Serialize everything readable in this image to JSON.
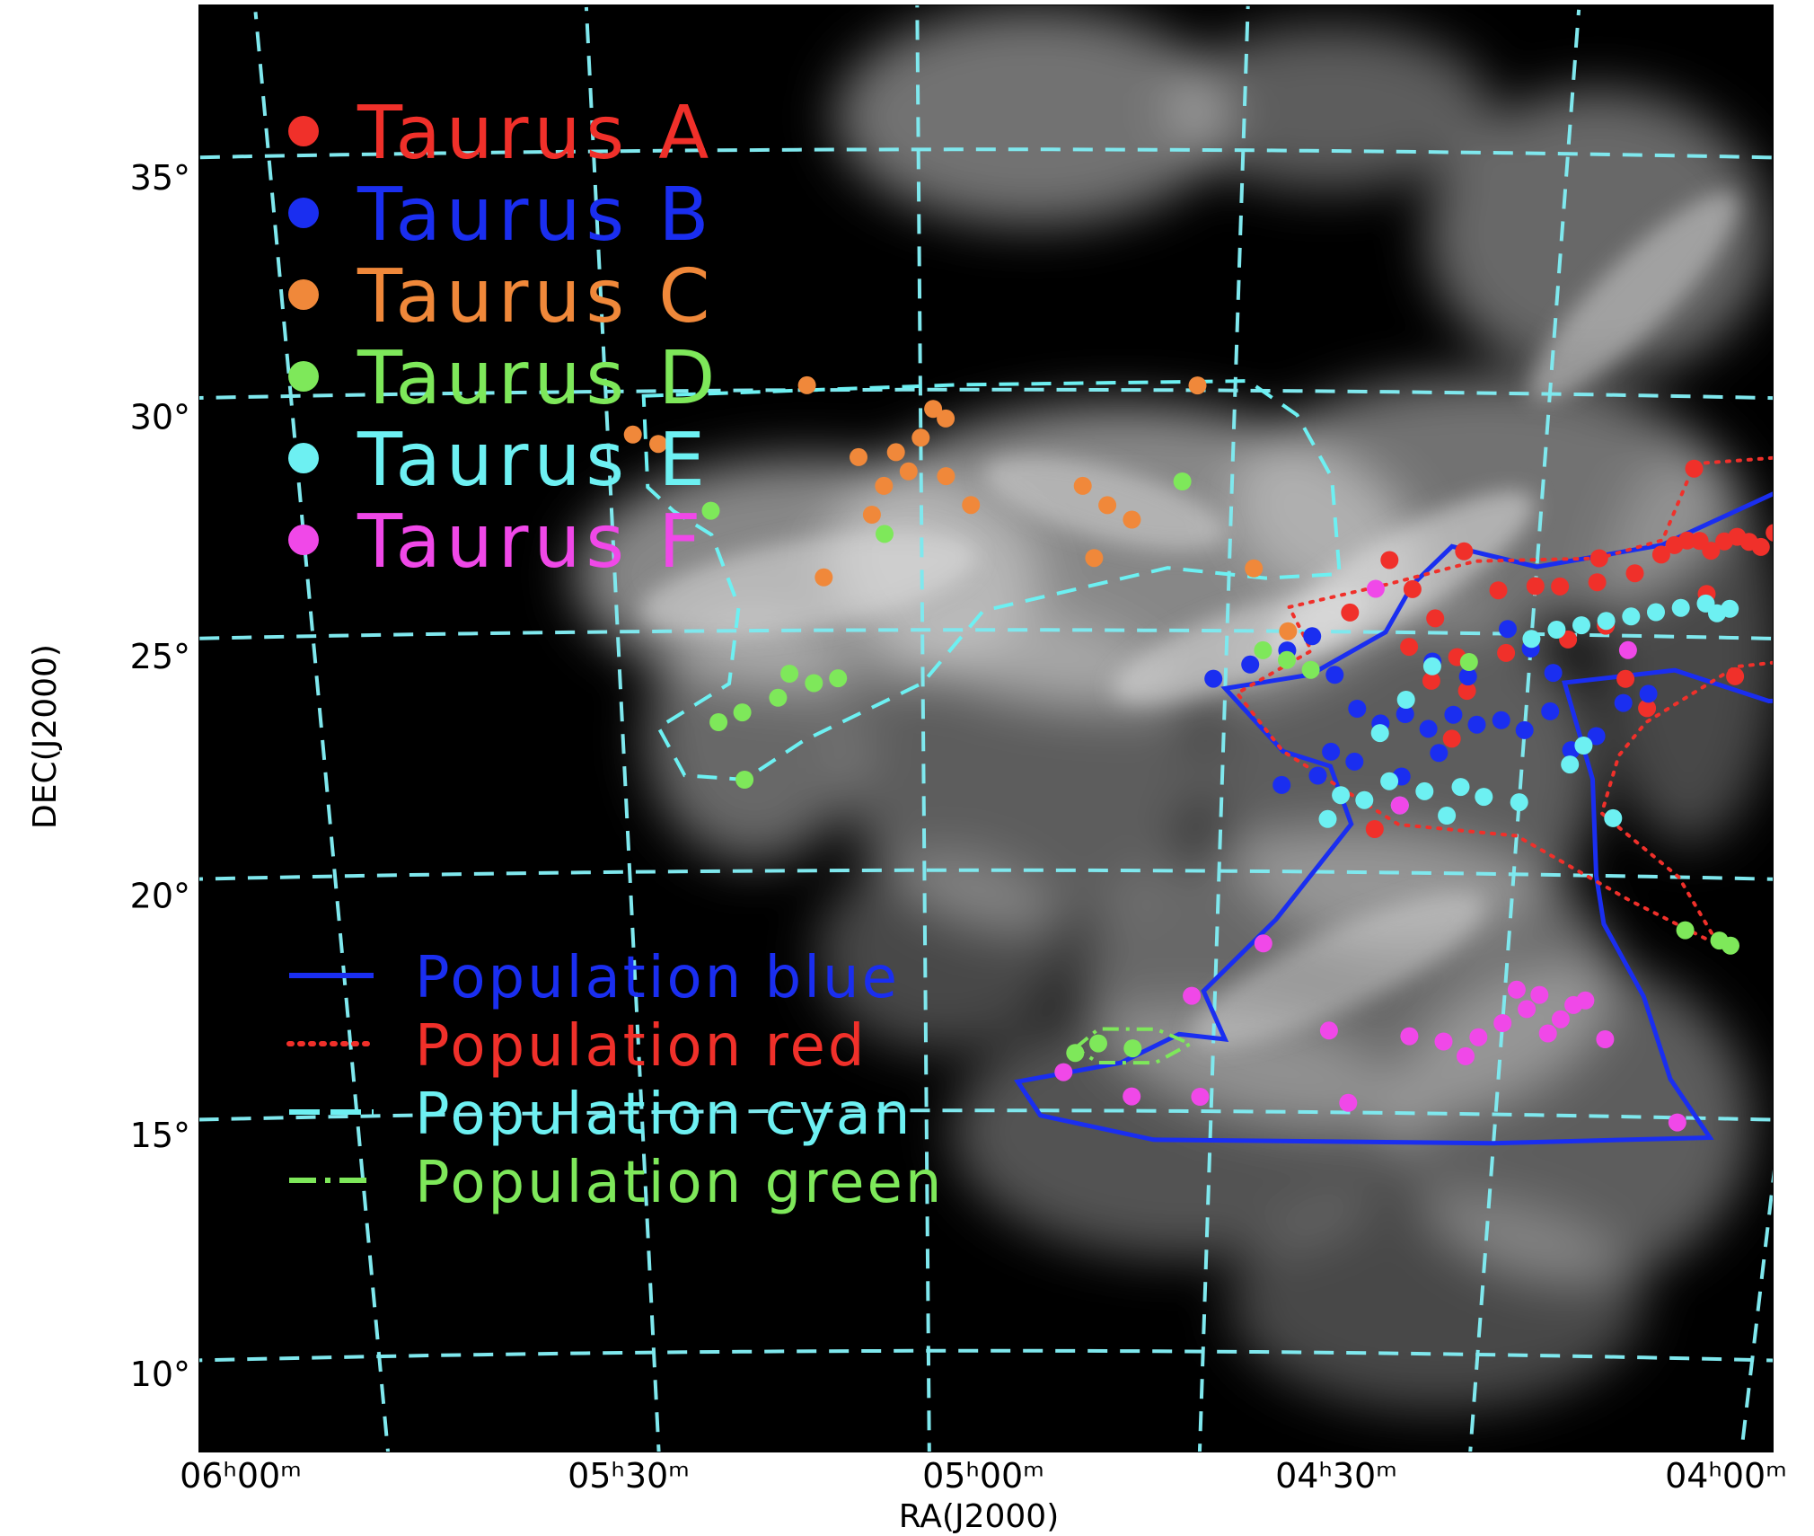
{
  "chart_data": {
    "type": "scatter",
    "title": "",
    "xlabel": "RA(J2000)",
    "ylabel": "DEC(J2000)",
    "xlim": [
      6.0,
      4.0
    ],
    "ylim": [
      8.5,
      36.5
    ],
    "colors": {
      "frame": "#000000",
      "grid": "#7fe8ee",
      "cloud": "#d8d8d8"
    },
    "ra_ticks": [
      {
        "value": 6.0,
        "label": "06ʰ00ᵐ"
      },
      {
        "value": 5.5,
        "label": "05ʰ30ᵐ"
      },
      {
        "value": 5.0,
        "label": "05ʰ00ᵐ"
      },
      {
        "value": 4.5,
        "label": "04ʰ30ᵐ"
      },
      {
        "value": 4.0,
        "label": "04ʰ00ᵐ"
      }
    ],
    "dec_ticks": [
      {
        "value": 35,
        "label": "35°"
      },
      {
        "value": 30,
        "label": "30°"
      },
      {
        "value": 25,
        "label": "25°"
      },
      {
        "value": 20,
        "label": "20°"
      },
      {
        "value": 15,
        "label": "15°"
      },
      {
        "value": 10,
        "label": "10°"
      }
    ],
    "series": [
      {
        "name": "Taurus A",
        "color": "#f0302a",
        "points": [
          [
            4.53,
            25.9
          ],
          [
            4.5,
            26.0
          ],
          [
            4.48,
            26.0
          ],
          [
            4.45,
            26.1
          ],
          [
            4.42,
            26.3
          ],
          [
            4.4,
            26.7
          ],
          [
            4.39,
            26.9
          ],
          [
            4.38,
            27.0
          ],
          [
            4.37,
            27.0
          ],
          [
            4.36,
            26.8
          ],
          [
            4.35,
            27.0
          ],
          [
            4.34,
            27.1
          ],
          [
            4.33,
            27.0
          ],
          [
            4.32,
            26.9
          ],
          [
            4.31,
            27.2
          ],
          [
            4.3,
            27.0
          ],
          [
            4.29,
            27.2
          ],
          [
            4.28,
            27.3
          ],
          [
            4.27,
            27.1
          ],
          [
            4.26,
            27.0
          ],
          [
            4.25,
            27.1
          ],
          [
            4.24,
            26.9
          ],
          [
            4.23,
            27.0
          ],
          [
            4.22,
            26.7
          ],
          [
            4.21,
            26.9
          ],
          [
            4.38,
            28.5
          ],
          [
            4.56,
            26.7
          ],
          [
            4.62,
            26.5
          ],
          [
            4.6,
            25.9
          ],
          [
            4.65,
            25.4
          ],
          [
            4.58,
            25.3
          ],
          [
            4.6,
            24.7
          ],
          [
            4.56,
            24.5
          ],
          [
            4.52,
            24.6
          ],
          [
            4.44,
            25.2
          ],
          [
            4.42,
            24.1
          ],
          [
            4.58,
            24.0
          ],
          [
            4.55,
            23.8
          ],
          [
            4.4,
            23.5
          ],
          [
            4.33,
            24.2
          ],
          [
            4.29,
            26.0
          ],
          [
            4.45,
            26.6
          ],
          [
            4.36,
            25.9
          ],
          [
            4.62,
            20.9
          ],
          [
            4.56,
            22.8
          ],
          [
            4.15,
            26.5
          ],
          [
            4.47,
            24.9
          ]
        ]
      },
      {
        "name": "Taurus B",
        "color": "#1a2ef0",
        "points": [
          [
            4.76,
            24.0
          ],
          [
            4.73,
            24.3
          ],
          [
            4.7,
            24.6
          ],
          [
            4.68,
            24.9
          ],
          [
            4.66,
            24.1
          ],
          [
            4.64,
            23.4
          ],
          [
            4.62,
            23.1
          ],
          [
            4.6,
            23.3
          ],
          [
            4.58,
            23.0
          ],
          [
            4.56,
            23.3
          ],
          [
            4.54,
            23.1
          ],
          [
            4.52,
            23.2
          ],
          [
            4.5,
            23.0
          ],
          [
            4.48,
            23.4
          ],
          [
            4.46,
            22.6
          ],
          [
            4.44,
            22.9
          ],
          [
            4.42,
            23.6
          ],
          [
            4.4,
            23.8
          ],
          [
            4.66,
            22.5
          ],
          [
            4.67,
            22.0
          ],
          [
            4.64,
            22.3
          ],
          [
            4.6,
            22.0
          ],
          [
            4.58,
            24.4
          ],
          [
            4.55,
            24.1
          ],
          [
            4.52,
            25.1
          ],
          [
            4.5,
            24.7
          ],
          [
            4.48,
            24.2
          ],
          [
            4.2,
            27.0
          ],
          [
            4.19,
            25.7
          ],
          [
            4.57,
            22.5
          ],
          [
            4.7,
            21.8
          ]
        ]
      },
      {
        "name": "Taurus C",
        "color": "#f0883a",
        "points": [
          [
            5.23,
            29.1
          ],
          [
            5.21,
            28.9
          ],
          [
            5.09,
            30.1
          ],
          [
            4.99,
            29.6
          ],
          [
            4.98,
            29.4
          ],
          [
            5.0,
            29.0
          ],
          [
            5.02,
            28.7
          ],
          [
            5.01,
            28.3
          ],
          [
            5.03,
            28.0
          ],
          [
            4.98,
            28.2
          ],
          [
            4.96,
            27.6
          ],
          [
            5.04,
            27.4
          ],
          [
            5.05,
            28.6
          ],
          [
            4.87,
            28.0
          ],
          [
            4.85,
            27.6
          ],
          [
            4.83,
            27.3
          ],
          [
            4.86,
            26.5
          ],
          [
            4.78,
            30.1
          ],
          [
            4.73,
            26.3
          ],
          [
            4.7,
            25.0
          ],
          [
            5.08,
            26.1
          ]
        ]
      },
      {
        "name": "Taurus D",
        "color": "#7ee85a",
        "points": [
          [
            5.17,
            27.5
          ],
          [
            5.03,
            27.0
          ],
          [
            4.79,
            28.1
          ],
          [
            5.11,
            24.1
          ],
          [
            5.09,
            23.9
          ],
          [
            5.07,
            24.0
          ],
          [
            5.12,
            23.6
          ],
          [
            5.15,
            23.3
          ],
          [
            5.17,
            23.1
          ],
          [
            5.15,
            21.9
          ],
          [
            4.72,
            24.6
          ],
          [
            4.7,
            24.4
          ],
          [
            4.68,
            24.2
          ],
          [
            4.55,
            24.4
          ],
          [
            4.35,
            18.9
          ],
          [
            4.32,
            18.7
          ],
          [
            4.31,
            18.6
          ],
          [
            4.87,
            16.2
          ],
          [
            4.85,
            16.4
          ],
          [
            4.82,
            16.3
          ]
        ]
      },
      {
        "name": "Taurus E",
        "color": "#6df0f2",
        "points": [
          [
            4.5,
            24.9
          ],
          [
            4.48,
            25.1
          ],
          [
            4.46,
            25.2
          ],
          [
            4.44,
            25.3
          ],
          [
            4.42,
            25.4
          ],
          [
            4.4,
            25.5
          ],
          [
            4.38,
            25.6
          ],
          [
            4.36,
            25.7
          ],
          [
            4.35,
            25.5
          ],
          [
            4.34,
            25.6
          ],
          [
            4.58,
            24.3
          ],
          [
            4.6,
            23.6
          ],
          [
            4.62,
            22.9
          ],
          [
            4.61,
            21.9
          ],
          [
            4.63,
            21.5
          ],
          [
            4.65,
            21.6
          ],
          [
            4.6,
            21.4
          ],
          [
            4.58,
            21.7
          ],
          [
            4.56,
            21.2
          ],
          [
            4.55,
            21.8
          ],
          [
            4.53,
            21.6
          ],
          [
            4.5,
            21.5
          ],
          [
            4.45,
            22.7
          ],
          [
            4.42,
            21.2
          ],
          [
            4.66,
            21.1
          ],
          [
            4.3,
            27.7
          ],
          [
            4.15,
            27.6
          ],
          [
            4.46,
            22.3
          ]
        ]
      },
      {
        "name": "Taurus F",
        "color": "#f048e8",
        "points": [
          [
            4.63,
            25.9
          ],
          [
            4.42,
            24.7
          ],
          [
            4.17,
            24.6
          ],
          [
            4.14,
            25.3
          ],
          [
            4.22,
            23.5
          ],
          [
            4.6,
            21.4
          ],
          [
            4.71,
            18.5
          ],
          [
            4.77,
            17.4
          ],
          [
            4.65,
            16.7
          ],
          [
            4.58,
            16.6
          ],
          [
            4.55,
            16.5
          ],
          [
            4.52,
            16.6
          ],
          [
            4.5,
            16.9
          ],
          [
            4.48,
            17.2
          ],
          [
            4.47,
            17.5
          ],
          [
            4.45,
            17.0
          ],
          [
            4.44,
            17.3
          ],
          [
            4.46,
            16.7
          ],
          [
            4.49,
            17.6
          ],
          [
            4.43,
            17.4
          ],
          [
            4.41,
            16.6
          ],
          [
            4.88,
            15.8
          ],
          [
            4.82,
            15.3
          ],
          [
            4.76,
            15.3
          ],
          [
            4.63,
            15.2
          ],
          [
            4.34,
            14.9
          ],
          [
            4.53,
            16.2
          ]
        ]
      }
    ],
    "legend_markers": [
      {
        "label": "Taurus A",
        "color": "#f0302a"
      },
      {
        "label": "Taurus B",
        "color": "#1a2ef0"
      },
      {
        "label": "Taurus C",
        "color": "#f0883a"
      },
      {
        "label": "Taurus D",
        "color": "#7ee85a"
      },
      {
        "label": "Taurus E",
        "color": "#6df0f2"
      },
      {
        "label": "Taurus F",
        "color": "#f048e8"
      }
    ],
    "legend_lines": [
      {
        "label": "Population blue",
        "color": "#1a2ef0",
        "style": "solid"
      },
      {
        "label": "Population red",
        "color": "#f0302a",
        "style": "dotted"
      },
      {
        "label": "Population cyan",
        "color": "#6df0f2",
        "style": "dashed"
      },
      {
        "label": "Population green",
        "color": "#7ee85a",
        "style": "dashdot"
      }
    ],
    "regions": [
      {
        "name": "Population blue",
        "color": "#1a2ef0",
        "style": "solid",
        "vertices": [
          [
            4.57,
            26.8
          ],
          [
            4.5,
            26.4
          ],
          [
            4.4,
            26.9
          ],
          [
            4.3,
            28.2
          ],
          [
            4.15,
            28.5
          ],
          [
            4.2,
            27.3
          ],
          [
            4.16,
            26.3
          ],
          [
            4.12,
            26.0
          ],
          [
            4.15,
            25.0
          ],
          [
            4.2,
            23.8
          ],
          [
            4.3,
            23.7
          ],
          [
            4.38,
            24.3
          ],
          [
            4.47,
            24.0
          ],
          [
            4.44,
            22.0
          ],
          [
            4.43,
            20.0
          ],
          [
            4.42,
            19.0
          ],
          [
            4.38,
            17.5
          ],
          [
            4.35,
            15.8
          ],
          [
            4.31,
            14.6
          ],
          [
            4.5,
            14.4
          ],
          [
            4.8,
            14.4
          ],
          [
            4.9,
            14.9
          ],
          [
            4.92,
            15.6
          ],
          [
            4.83,
            16.0
          ],
          [
            4.78,
            16.6
          ],
          [
            4.74,
            16.5
          ],
          [
            4.76,
            17.5
          ],
          [
            4.7,
            19.0
          ],
          [
            4.64,
            21.0
          ],
          [
            4.66,
            22.2
          ],
          [
            4.7,
            22.5
          ],
          [
            4.75,
            23.8
          ],
          [
            4.68,
            24.1
          ],
          [
            4.62,
            25.0
          ],
          [
            4.6,
            26.0
          ]
        ]
      },
      {
        "name": "Population red",
        "color": "#f0302a",
        "style": "dotted",
        "vertices": [
          [
            4.38,
            28.6
          ],
          [
            4.3,
            28.8
          ],
          [
            4.23,
            27.6
          ],
          [
            4.18,
            26.7
          ],
          [
            4.14,
            26.8
          ],
          [
            4.2,
            25.5
          ],
          [
            4.27,
            24.6
          ],
          [
            4.33,
            24.4
          ],
          [
            4.4,
            23.2
          ],
          [
            4.42,
            22.5
          ],
          [
            4.43,
            21.3
          ],
          [
            4.36,
            20.0
          ],
          [
            4.32,
            18.6
          ],
          [
            4.4,
            19.5
          ],
          [
            4.5,
            20.8
          ],
          [
            4.6,
            21.0
          ],
          [
            4.7,
            22.5
          ],
          [
            4.74,
            23.7
          ],
          [
            4.68,
            24.6
          ],
          [
            4.7,
            25.5
          ],
          [
            4.62,
            26.0
          ],
          [
            4.55,
            26.5
          ],
          [
            4.45,
            26.6
          ],
          [
            4.4,
            27.0
          ]
        ]
      },
      {
        "name": "Population cyan",
        "color": "#6df0f2",
        "style": "dashed",
        "vertices": [
          [
            5.22,
            29.9
          ],
          [
            4.97,
            30.1
          ],
          [
            4.74,
            30.2
          ],
          [
            4.7,
            29.5
          ],
          [
            4.67,
            28.2
          ],
          [
            4.66,
            26.2
          ],
          [
            4.72,
            26.1
          ],
          [
            4.8,
            26.3
          ],
          [
            4.95,
            25.4
          ],
          [
            5.0,
            23.9
          ],
          [
            5.1,
            22.7
          ],
          [
            5.15,
            21.9
          ],
          [
            5.2,
            22.0
          ],
          [
            5.22,
            23.0
          ],
          [
            5.16,
            23.9
          ],
          [
            5.15,
            25.5
          ],
          [
            5.17,
            27.0
          ],
          [
            5.2,
            27.5
          ],
          [
            5.22,
            28.0
          ]
        ]
      },
      {
        "name": "Population green",
        "color": "#7ee85a",
        "style": "dashdot",
        "vertices": [
          [
            4.87,
            16.3
          ],
          [
            4.85,
            16.7
          ],
          [
            4.8,
            16.7
          ],
          [
            4.77,
            16.4
          ],
          [
            4.8,
            16.0
          ],
          [
            4.85,
            16.0
          ]
        ]
      }
    ]
  }
}
